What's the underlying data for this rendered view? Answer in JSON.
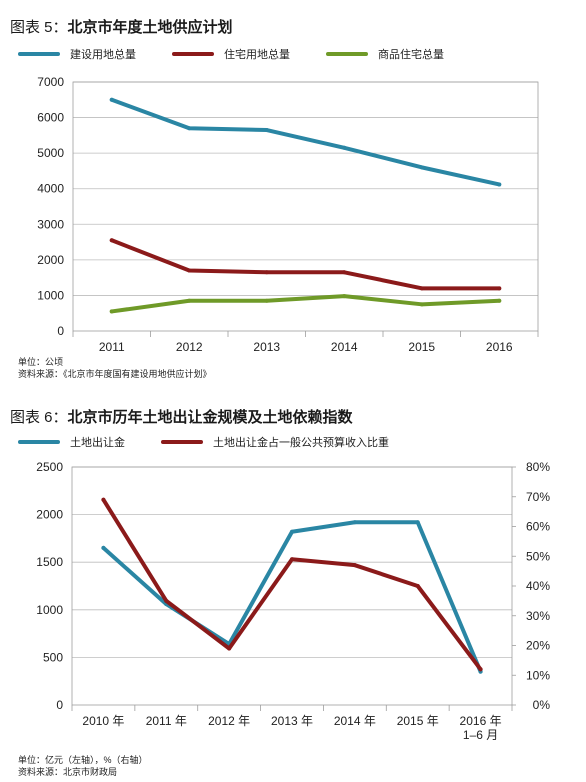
{
  "figure1": {
    "title_prefix": "图表 5：",
    "title_main": "北京市年度土地供应计划",
    "note_unit": "单位：公顷",
    "note_source": "资料来源：《北京市年度国有建设用地供应计划》",
    "chart_data": {
      "type": "line",
      "categories": [
        "2011",
        "2012",
        "2013",
        "2014",
        "2015",
        "2016"
      ],
      "series": [
        {
          "name": "建设用地总量",
          "color": "#2a86a4",
          "values": [
            6500,
            5700,
            5650,
            5150,
            4600,
            4120
          ]
        },
        {
          "name": "住宅用地总量",
          "color": "#8b1a1a",
          "values": [
            2550,
            1700,
            1650,
            1650,
            1200,
            1200
          ]
        },
        {
          "name": "商品住宅总量",
          "color": "#6f9a28",
          "values": [
            550,
            850,
            850,
            980,
            750,
            850
          ]
        }
      ],
      "ylim": [
        0,
        7000
      ],
      "yticks": [
        "0",
        "1000",
        "2000",
        "3000",
        "4000",
        "5000",
        "6000",
        "7000"
      ],
      "grid": true,
      "legend": "top-left"
    }
  },
  "figure2": {
    "title_prefix": "图表 6：",
    "title_main": "北京市历年土地出让金规模及土地依赖指数",
    "note_unit": "单位：亿元（左轴），%（右轴）",
    "note_source": "资料来源：北京市财政局",
    "chart_data": {
      "type": "line",
      "categories": [
        "2010 年",
        "2011 年",
        "2012 年",
        "2013 年",
        "2014 年",
        "2015 年",
        "2016 年"
      ],
      "category_sublabels": [
        "",
        "",
        "",
        "",
        "",
        "",
        "1–6 月"
      ],
      "series": [
        {
          "name": "土地出让金",
          "axis": "left",
          "color": "#2a86a4",
          "values": [
            1650,
            1060,
            640,
            1820,
            1920,
            1920,
            350
          ]
        },
        {
          "name": "土地出让金占一般公共预算收入比重",
          "axis": "right",
          "color": "#8b1a1a",
          "values": [
            69,
            35,
            19,
            49,
            47,
            40,
            12
          ]
        }
      ],
      "ylim_left": [
        0,
        2500
      ],
      "yticks_left": [
        "0",
        "500",
        "1000",
        "1500",
        "2000",
        "2500"
      ],
      "ylim_right": [
        0,
        80
      ],
      "yticks_right": [
        "0%",
        "10%",
        "20%",
        "30%",
        "40%",
        "50%",
        "60%",
        "70%",
        "80%"
      ],
      "grid": true,
      "legend": "top-left"
    }
  }
}
